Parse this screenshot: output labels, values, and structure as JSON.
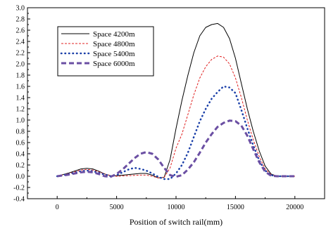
{
  "chart_data": {
    "type": "line",
    "title": "",
    "xlabel": "Position of switch rail(mm)",
    "ylabel": "",
    "xlim": [
      -2500,
      22500
    ],
    "ylim": [
      -0.4,
      3.0
    ],
    "x_ticks": [
      0,
      5000,
      10000,
      15000,
      20000
    ],
    "y_ticks": [
      -0.4,
      -0.2,
      0.0,
      0.2,
      0.4,
      0.6,
      0.8,
      1.0,
      1.2,
      1.4,
      1.6,
      1.8,
      2.0,
      2.2,
      2.4,
      2.6,
      2.8,
      3.0
    ],
    "grid": false,
    "legend_position": "upper-left",
    "series": [
      {
        "name": "Space 4200m",
        "color": "#000000",
        "style": "solid",
        "x": [
          0,
          1000,
          2000,
          2500,
          3000,
          3500,
          4000,
          4500,
          5000,
          6000,
          7000,
          7500,
          8000,
          8500,
          9000,
          9500,
          10000,
          10500,
          11000,
          11500,
          12000,
          12500,
          13000,
          13500,
          14000,
          14500,
          15000,
          15500,
          16000,
          16500,
          17000,
          17500,
          18000,
          18500,
          19000,
          20000
        ],
        "values": [
          0.0,
          0.06,
          0.13,
          0.14,
          0.13,
          0.09,
          0.04,
          0.01,
          0.01,
          0.03,
          0.05,
          0.05,
          0.02,
          -0.03,
          -0.02,
          0.3,
          0.85,
          1.35,
          1.8,
          2.2,
          2.5,
          2.65,
          2.7,
          2.72,
          2.65,
          2.45,
          2.1,
          1.65,
          1.2,
          0.8,
          0.45,
          0.18,
          0.04,
          0.0,
          0.0,
          0.0
        ]
      },
      {
        "name": "Space 4800m",
        "color": "#e02020",
        "style": "dashed",
        "x": [
          0,
          1000,
          2000,
          2500,
          3000,
          3500,
          4000,
          4500,
          5000,
          6000,
          7000,
          7500,
          8000,
          8500,
          9000,
          9500,
          10000,
          10500,
          11000,
          11500,
          12000,
          12500,
          13000,
          13500,
          14000,
          14500,
          15000,
          15500,
          16000,
          16500,
          17000,
          17500,
          18000,
          18500,
          19000,
          20000
        ],
        "values": [
          0.0,
          0.05,
          0.11,
          0.12,
          0.11,
          0.08,
          0.04,
          0.01,
          0.0,
          0.01,
          0.02,
          0.02,
          0.0,
          -0.03,
          -0.02,
          0.15,
          0.5,
          0.75,
          1.1,
          1.45,
          1.75,
          1.95,
          2.08,
          2.14,
          2.12,
          2.0,
          1.75,
          1.4,
          1.0,
          0.65,
          0.35,
          0.13,
          0.03,
          0.0,
          0.0,
          0.0
        ]
      },
      {
        "name": "Space 5400m",
        "color": "#1a3fa8",
        "style": "dotted",
        "x": [
          0,
          1000,
          2000,
          2500,
          3000,
          3500,
          4000,
          4500,
          5000,
          5500,
          6000,
          6500,
          7000,
          7500,
          8000,
          8500,
          9000,
          9500,
          10000,
          10500,
          11000,
          11500,
          12000,
          12500,
          13000,
          13500,
          14000,
          14500,
          15000,
          15500,
          16000,
          16500,
          17000,
          17500,
          18000,
          18500,
          19000,
          20000
        ],
        "values": [
          0.0,
          0.04,
          0.09,
          0.1,
          0.09,
          0.06,
          0.03,
          0.0,
          0.02,
          0.07,
          0.12,
          0.15,
          0.13,
          0.1,
          0.05,
          -0.01,
          -0.05,
          -0.05,
          0.05,
          0.2,
          0.42,
          0.7,
          0.98,
          1.2,
          1.38,
          1.5,
          1.6,
          1.58,
          1.48,
          1.18,
          0.85,
          0.55,
          0.28,
          0.1,
          0.02,
          0.0,
          0.0,
          0.0
        ]
      },
      {
        "name": "Space 6000m",
        "color": "#6b4fa3",
        "style": "thick-dashed",
        "x": [
          0,
          1000,
          2000,
          2500,
          3000,
          3500,
          4000,
          4500,
          5000,
          5500,
          6000,
          6500,
          7000,
          7500,
          8000,
          8500,
          9000,
          9500,
          10000,
          10500,
          11000,
          11500,
          12000,
          12500,
          13000,
          13500,
          14000,
          14500,
          15000,
          15500,
          16000,
          16500,
          17000,
          17500,
          18000,
          18500,
          19000,
          20000
        ],
        "values": [
          0.0,
          0.03,
          0.07,
          0.08,
          0.07,
          0.04,
          0.0,
          -0.01,
          0.04,
          0.12,
          0.22,
          0.32,
          0.4,
          0.43,
          0.4,
          0.3,
          0.15,
          0.02,
          -0.01,
          0.02,
          0.12,
          0.25,
          0.42,
          0.6,
          0.75,
          0.88,
          0.95,
          0.99,
          0.98,
          0.9,
          0.72,
          0.48,
          0.25,
          0.08,
          0.01,
          0.0,
          0.0,
          0.0
        ]
      }
    ]
  }
}
